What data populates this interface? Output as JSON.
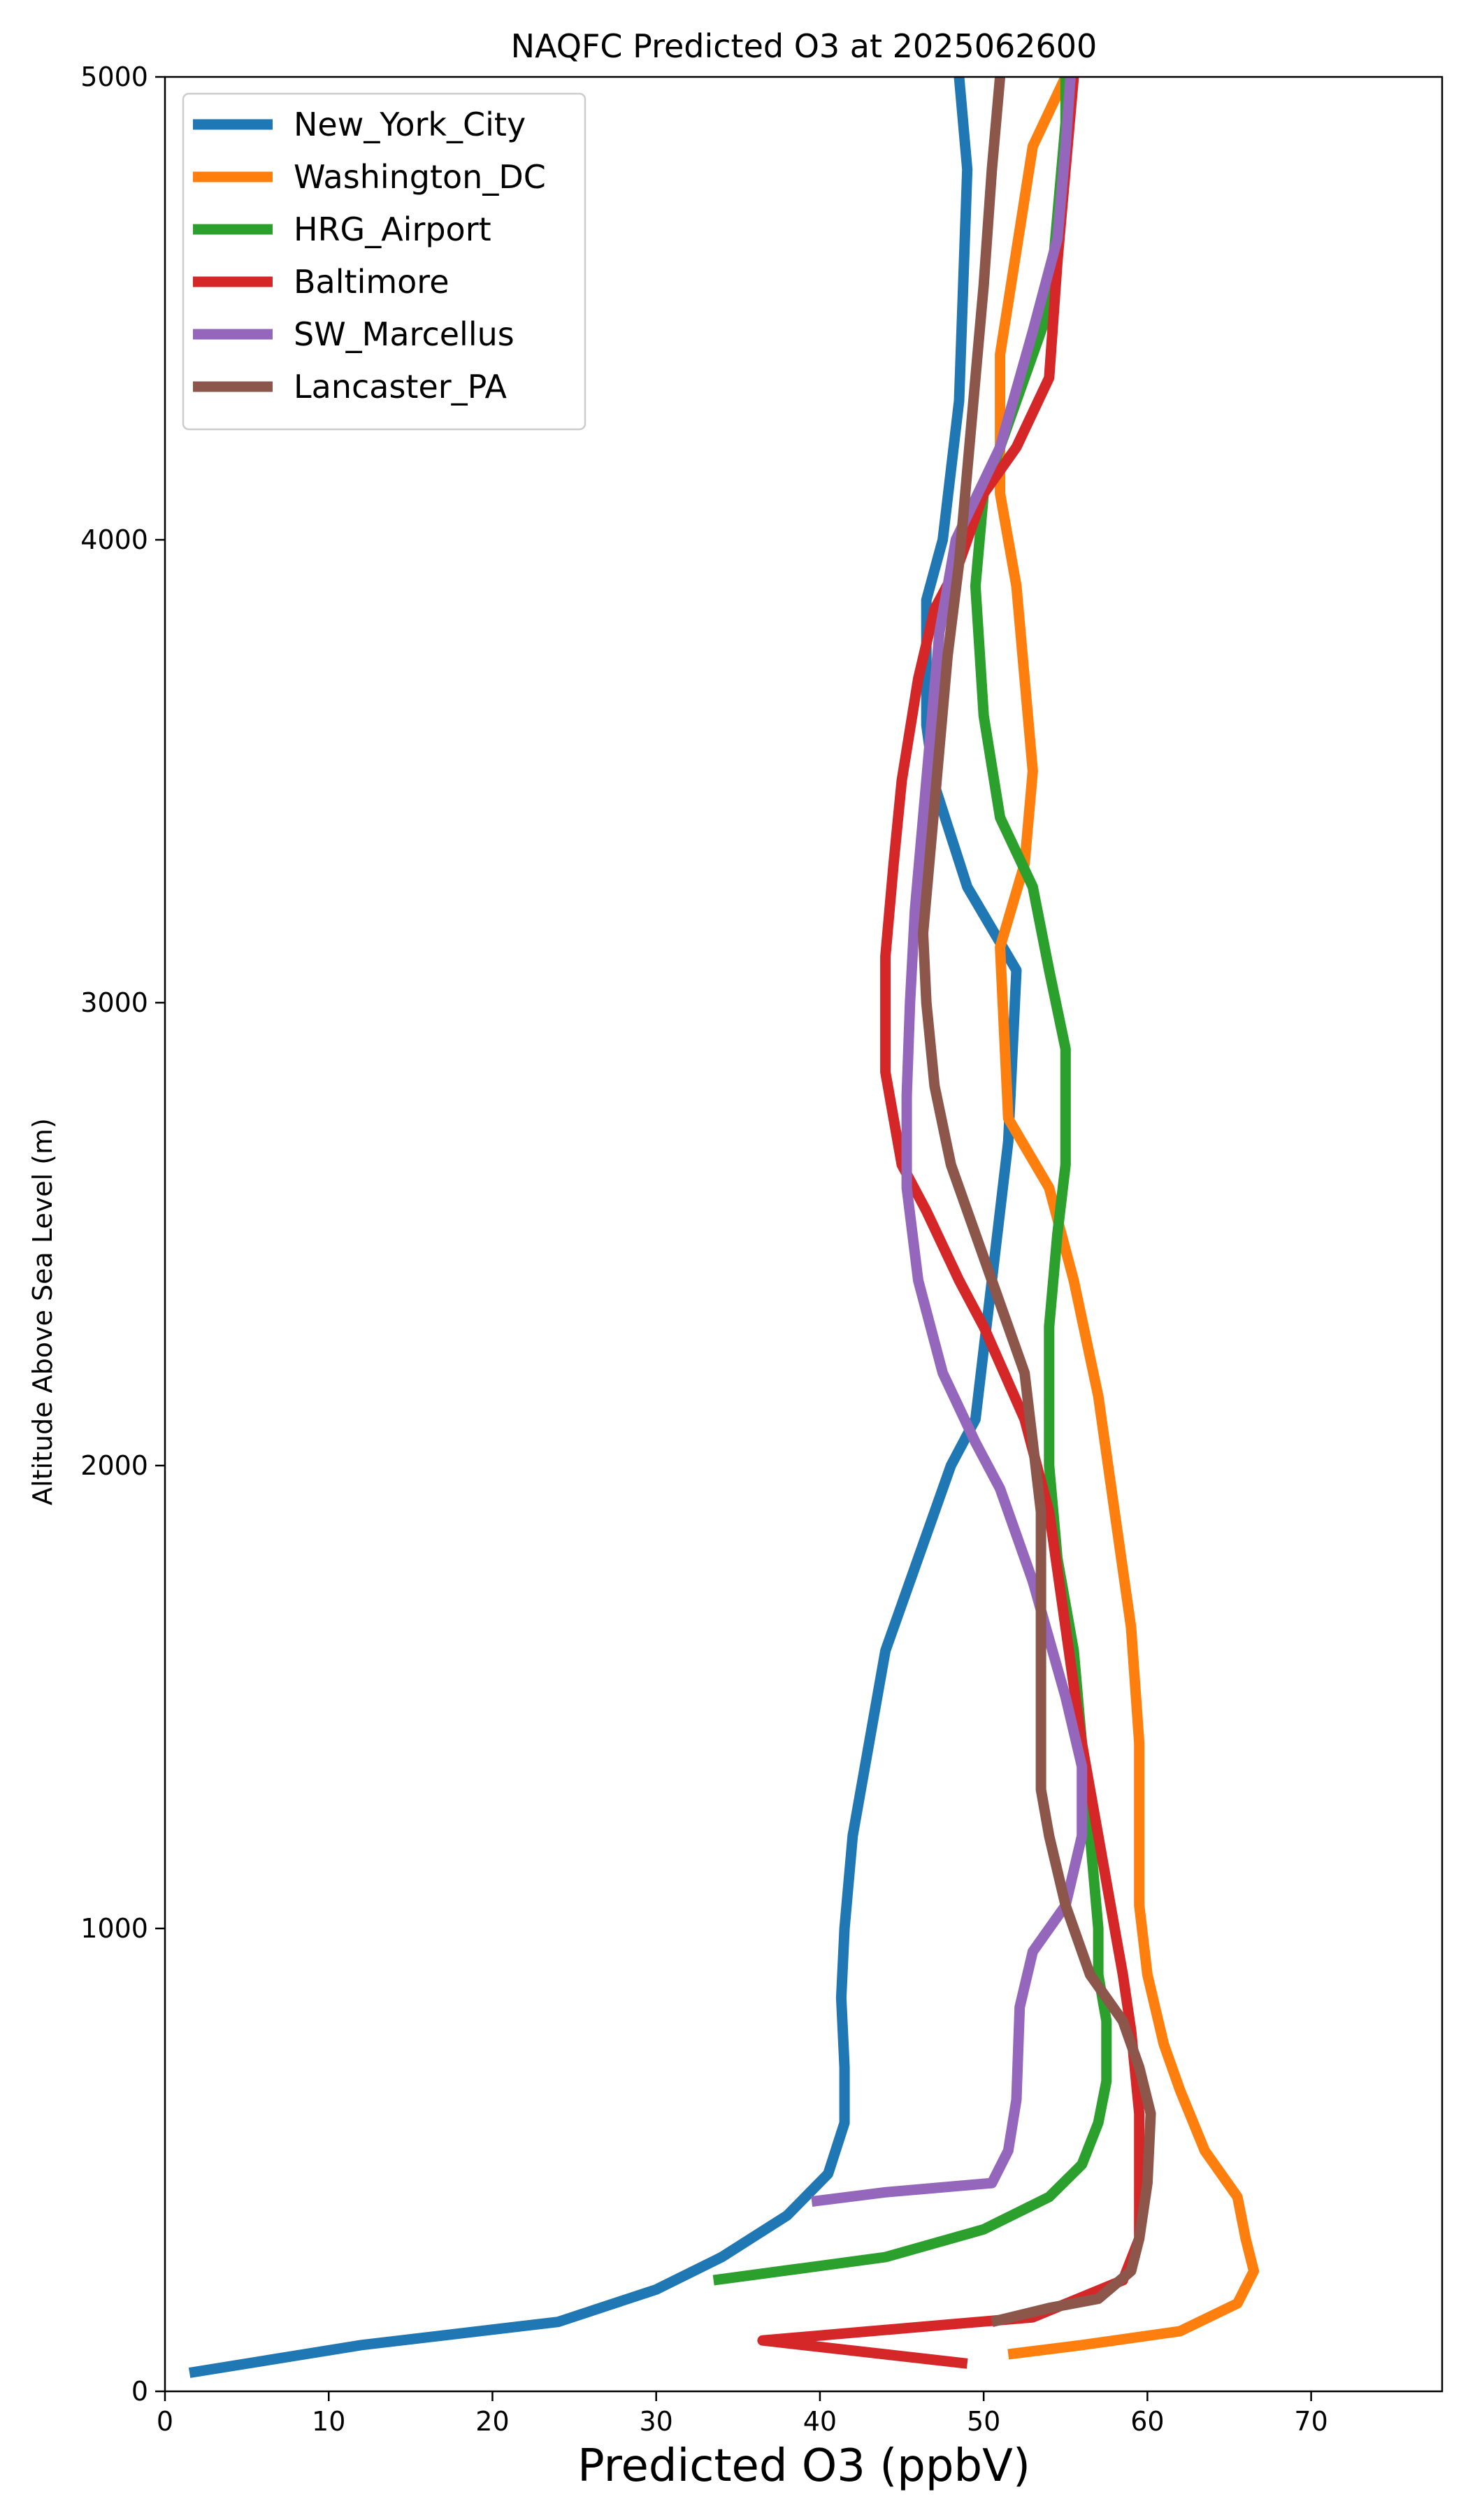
{
  "chart_data": {
    "type": "line",
    "title": "NAQFC Predicted O3 at 2025062600",
    "xlabel": "Predicted O3 (ppbV)",
    "ylabel": "Altitude Above Sea Level (m)",
    "xlim": [
      0,
      78
    ],
    "ylim": [
      0,
      5000
    ],
    "xticks": [
      0,
      10,
      20,
      30,
      40,
      50,
      60,
      70
    ],
    "yticks": [
      0,
      1000,
      2000,
      3000,
      4000,
      5000
    ],
    "grid": false,
    "legend_position": "top-left",
    "series": [
      {
        "name": "New_York_City",
        "color": "#1f77b4",
        "points": [
          [
            1.5,
            40
          ],
          [
            12,
            100
          ],
          [
            24,
            150
          ],
          [
            30,
            220
          ],
          [
            34,
            290
          ],
          [
            38,
            380
          ],
          [
            40.5,
            470
          ],
          [
            41.5,
            580
          ],
          [
            41.5,
            700
          ],
          [
            41.3,
            850
          ],
          [
            41.5,
            1000
          ],
          [
            42,
            1200
          ],
          [
            43,
            1400
          ],
          [
            44,
            1600
          ],
          [
            46.5,
            1850
          ],
          [
            48,
            2000
          ],
          [
            49.5,
            2100
          ],
          [
            50.5,
            2400
          ],
          [
            51.5,
            2700
          ],
          [
            52,
            3070
          ],
          [
            49,
            3250
          ],
          [
            47,
            3470
          ],
          [
            46.5,
            3600
          ],
          [
            46.5,
            3870
          ],
          [
            47.5,
            4000
          ],
          [
            48.5,
            4300
          ],
          [
            49,
            4800
          ],
          [
            48.5,
            5000
          ]
        ]
      },
      {
        "name": "Washington_DC",
        "color": "#ff7f0e",
        "points": [
          [
            51.5,
            80
          ],
          [
            56,
            100
          ],
          [
            62,
            130
          ],
          [
            65.5,
            190
          ],
          [
            66.5,
            260
          ],
          [
            66,
            330
          ],
          [
            65.5,
            420
          ],
          [
            63.5,
            520
          ],
          [
            62,
            650
          ],
          [
            61,
            750
          ],
          [
            60,
            900
          ],
          [
            59.5,
            1050
          ],
          [
            59.5,
            1200
          ],
          [
            59.5,
            1300
          ],
          [
            59.5,
            1400
          ],
          [
            59,
            1650
          ],
          [
            58,
            1900
          ],
          [
            57,
            2150
          ],
          [
            55.5,
            2400
          ],
          [
            54,
            2600
          ],
          [
            51.5,
            2750
          ],
          [
            51,
            3120
          ],
          [
            52.5,
            3300
          ],
          [
            53,
            3500
          ],
          [
            52.5,
            3700
          ],
          [
            52,
            3900
          ],
          [
            51,
            4100
          ],
          [
            51,
            4400
          ],
          [
            53,
            4850
          ],
          [
            55,
            5000
          ]
        ]
      },
      {
        "name": "HRG_Airport",
        "color": "#2ca02c",
        "points": [
          [
            33.5,
            240
          ],
          [
            44,
            290
          ],
          [
            50,
            350
          ],
          [
            54,
            420
          ],
          [
            56,
            490
          ],
          [
            57,
            580
          ],
          [
            57.5,
            670
          ],
          [
            57.5,
            800
          ],
          [
            57,
            900
          ],
          [
            57,
            1000
          ],
          [
            56.5,
            1200
          ],
          [
            56,
            1400
          ],
          [
            55.5,
            1600
          ],
          [
            54.5,
            1800
          ],
          [
            54,
            2000
          ],
          [
            54,
            2300
          ],
          [
            54.5,
            2500
          ],
          [
            55,
            2650
          ],
          [
            55,
            2900
          ],
          [
            54,
            3070
          ],
          [
            53,
            3250
          ],
          [
            51,
            3400
          ],
          [
            50,
            3620
          ],
          [
            49.5,
            3900
          ],
          [
            50,
            4100
          ],
          [
            52,
            4300
          ],
          [
            54,
            4500
          ],
          [
            54.5,
            4700
          ],
          [
            55,
            4900
          ],
          [
            55,
            5000
          ]
        ]
      },
      {
        "name": "Baltimore",
        "color": "#d62728",
        "points": [
          [
            49,
            60
          ],
          [
            36.5,
            110
          ],
          [
            53,
            160
          ],
          [
            58.5,
            240
          ],
          [
            59.5,
            330
          ],
          [
            59.5,
            450
          ],
          [
            59.5,
            600
          ],
          [
            59,
            780
          ],
          [
            58.5,
            900
          ],
          [
            58,
            1000
          ],
          [
            57,
            1200
          ],
          [
            56,
            1400
          ],
          [
            55,
            1650
          ],
          [
            54,
            1900
          ],
          [
            52.5,
            2100
          ],
          [
            50,
            2300
          ],
          [
            48.5,
            2400
          ],
          [
            46.5,
            2550
          ],
          [
            45,
            2650
          ],
          [
            44,
            2850
          ],
          [
            44,
            3100
          ],
          [
            44.5,
            3300
          ],
          [
            45,
            3480
          ],
          [
            46,
            3700
          ],
          [
            47,
            3850
          ],
          [
            48.5,
            3950
          ],
          [
            50,
            4100
          ],
          [
            52,
            4200
          ],
          [
            54,
            4350
          ],
          [
            54.5,
            4600
          ],
          [
            55,
            4800
          ],
          [
            55.5,
            5000
          ]
        ]
      },
      {
        "name": "SW_Marcellus",
        "color": "#9467bd",
        "points": [
          [
            39.5,
            410
          ],
          [
            44,
            430
          ],
          [
            50.5,
            450
          ],
          [
            51.5,
            520
          ],
          [
            52,
            630
          ],
          [
            52.2,
            830
          ],
          [
            53,
            950
          ],
          [
            55,
            1050
          ],
          [
            56,
            1200
          ],
          [
            56,
            1350
          ],
          [
            55,
            1500
          ],
          [
            53,
            1750
          ],
          [
            51,
            1950
          ],
          [
            49.5,
            2050
          ],
          [
            47.5,
            2200
          ],
          [
            46,
            2400
          ],
          [
            45.3,
            2600
          ],
          [
            45.3,
            2800
          ],
          [
            45.5,
            3000
          ],
          [
            45.8,
            3200
          ],
          [
            46.3,
            3400
          ],
          [
            46.8,
            3600
          ],
          [
            47.3,
            3800
          ],
          [
            48.3,
            4000
          ],
          [
            51,
            4200
          ],
          [
            53,
            4450
          ],
          [
            54.5,
            4650
          ],
          [
            55,
            4850
          ],
          [
            55.3,
            5000
          ]
        ]
      },
      {
        "name": "Lancaster_PA",
        "color": "#8c564b",
        "points": [
          [
            50.5,
            150
          ],
          [
            54,
            180
          ],
          [
            57,
            200
          ],
          [
            59,
            260
          ],
          [
            59.5,
            330
          ],
          [
            60,
            450
          ],
          [
            60.2,
            600
          ],
          [
            59.5,
            700
          ],
          [
            58.5,
            800
          ],
          [
            56.5,
            900
          ],
          [
            55,
            1050
          ],
          [
            54,
            1200
          ],
          [
            53.5,
            1300
          ],
          [
            53.5,
            1500
          ],
          [
            53.5,
            1700
          ],
          [
            53.5,
            1900
          ],
          [
            53,
            2050
          ],
          [
            52.5,
            2200
          ],
          [
            51,
            2350
          ],
          [
            49.5,
            2500
          ],
          [
            48,
            2650
          ],
          [
            47,
            2820
          ],
          [
            46.5,
            3000
          ],
          [
            46.3,
            3150
          ],
          [
            46.8,
            3350
          ],
          [
            47.3,
            3550
          ],
          [
            47.8,
            3750
          ],
          [
            48.5,
            3950
          ],
          [
            49,
            4150
          ],
          [
            49.5,
            4350
          ],
          [
            50,
            4550
          ],
          [
            50.5,
            4800
          ],
          [
            51,
            5000
          ]
        ]
      }
    ]
  }
}
